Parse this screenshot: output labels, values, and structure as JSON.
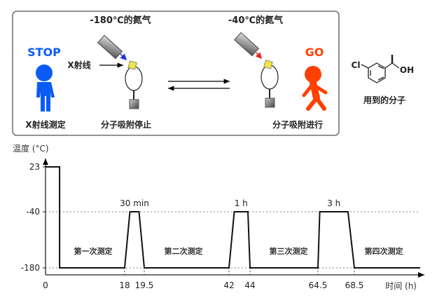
{
  "scheme": {
    "stop_label": "STOP",
    "go_label": "GO",
    "left_gas": "-180℃的氮气",
    "right_gas": "-40℃的氮气",
    "xray_label": "X射线",
    "xray_measure": "X射线测定",
    "adsorption_stop": "分子吸附停止",
    "adsorption_go": "分子吸附进行",
    "molecule_caption": "用到的分子",
    "molecule_cl": "Cl",
    "molecule_oh": "OH",
    "colors": {
      "stop": "#0a5cf5",
      "go": "#ff4000",
      "crystal": "#f2e640",
      "stop_arrow": "#1a2fe0",
      "go_arrow": "#ee2020"
    }
  },
  "chart_data": {
    "type": "line",
    "ylabel": "温度 (°C)",
    "xlabel": "时间 (h)",
    "y_ticks": [
      "23",
      "-40",
      "-180"
    ],
    "y_tick_values": [
      23,
      -40,
      -180
    ],
    "x_ticks": [
      "0",
      "18",
      "19.5",
      "42",
      "44",
      "64.5",
      "68.5"
    ],
    "x_tick_values": [
      0,
      18,
      19.5,
      42,
      44,
      64.5,
      68.5
    ],
    "x_scale": "non-linear (broken)",
    "series": [
      {
        "points": [
          [
            0,
            23
          ],
          [
            3.2,
            23
          ],
          [
            3.2,
            -180
          ],
          [
            18,
            -180
          ],
          [
            18.4,
            -40
          ],
          [
            19.1,
            -40
          ],
          [
            19.5,
            -180
          ],
          [
            42,
            -180
          ],
          [
            42.5,
            -40
          ],
          [
            43.8,
            -40
          ],
          [
            44,
            -180
          ],
          [
            64.5,
            -180
          ],
          [
            64.7,
            -40
          ],
          [
            67.8,
            -40
          ],
          [
            68.5,
            -180
          ]
        ]
      }
    ],
    "reference_lines": [
      -40,
      -180
    ],
    "peak_labels": [
      "30 min",
      "1 h",
      "3 h"
    ],
    "phase_labels": [
      "第一次测定",
      "第二次测定",
      "第三次测定",
      "第四次测定"
    ]
  }
}
